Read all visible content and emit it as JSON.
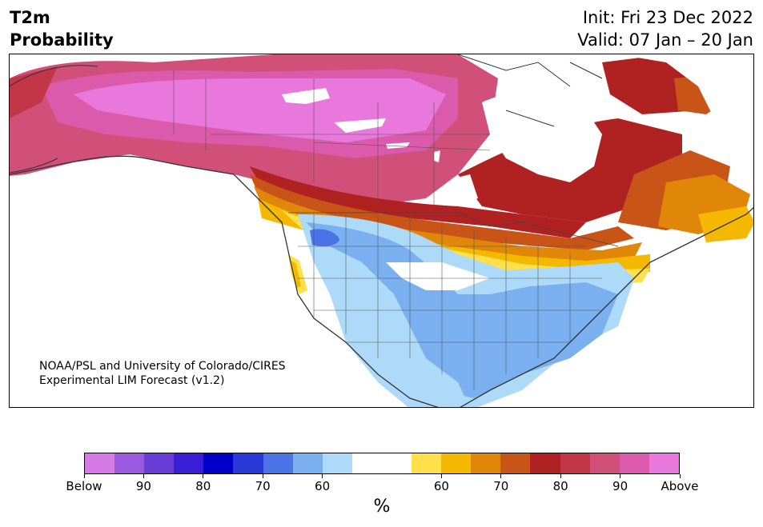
{
  "header": {
    "title_line1": "T2m",
    "title_line2": "Probability",
    "init": "Init: Fri 23 Dec 2022",
    "valid": "Valid: 07 Jan – 20 Jan"
  },
  "map": {
    "region": "North America",
    "credit_line1": "NOAA/PSL and University of Colorado/CIRES",
    "credit_line2": "Experimental LIM Forecast (v1.2)"
  },
  "legend": {
    "unit": "%",
    "ticks": [
      "Below",
      "90",
      "80",
      "70",
      "60",
      "60",
      "70",
      "80",
      "90",
      "Above"
    ],
    "colors": {
      "below": [
        "#d67ae6",
        "#9a5ae0",
        "#6a3cd8",
        "#3a1ed6",
        "#0000c8",
        "#2a3ad8",
        "#4a74e6",
        "#7ab0f0",
        "#aedafa"
      ],
      "neutral": "#ffffff",
      "above": [
        "#ffe04a",
        "#f4b800",
        "#e0870a",
        "#c85418",
        "#b02222",
        "#c23648",
        "#d0507a",
        "#dc5aac",
        "#e878dc"
      ]
    }
  }
}
